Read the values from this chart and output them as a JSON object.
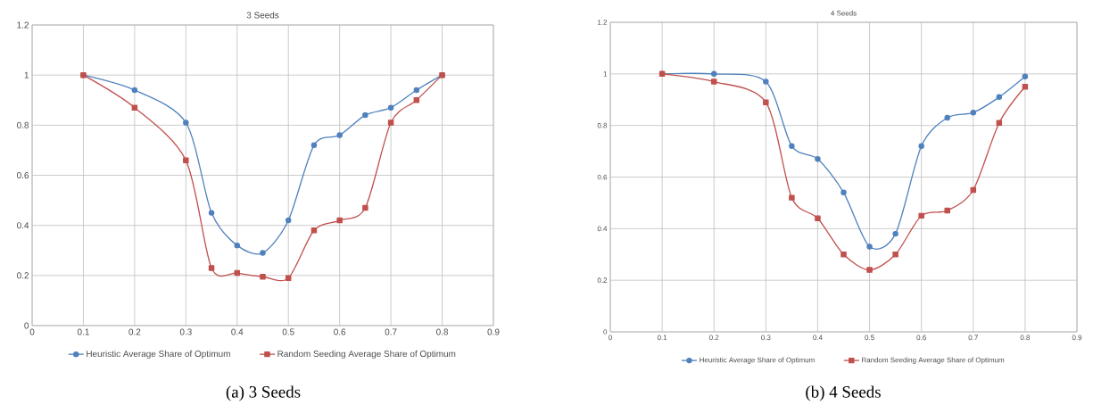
{
  "chart_data": [
    {
      "type": "line",
      "title": "3 Seeds",
      "x": [
        0.1,
        0.2,
        0.3,
        0.35,
        0.4,
        0.45,
        0.5,
        0.55,
        0.6,
        0.65,
        0.7,
        0.75,
        0.8
      ],
      "series": [
        {
          "name": "Heuristic Average Share of Optimum",
          "color": "#4f81bd",
          "marker": "circle",
          "values": [
            1,
            0.94,
            0.81,
            0.45,
            0.32,
            0.29,
            0.42,
            0.72,
            0.76,
            0.84,
            0.87,
            0.94,
            1
          ]
        },
        {
          "name": "Random Seeding Average Share of Optimum",
          "color": "#c0504d",
          "marker": "square",
          "values": [
            1,
            0.87,
            0.66,
            0.23,
            0.21,
            0.195,
            0.19,
            0.38,
            0.42,
            0.47,
            0.81,
            0.9,
            1
          ]
        }
      ],
      "xlim": [
        0,
        0.9
      ],
      "xticks": [
        0,
        0.1,
        0.2,
        0.3,
        0.4,
        0.5,
        0.6,
        0.7,
        0.8,
        0.9
      ],
      "ylim": [
        0,
        1.2
      ],
      "yticks": [
        0,
        0.2,
        0.4,
        0.6,
        0.8,
        1,
        1.2
      ],
      "grid": true,
      "legend": "bottom",
      "annotations": [
        "(a) 3 Seeds"
      ]
    },
    {
      "type": "line",
      "title": "4 Seeds",
      "x": [
        0.1,
        0.2,
        0.3,
        0.35,
        0.4,
        0.45,
        0.5,
        0.55,
        0.6,
        0.65,
        0.7,
        0.75,
        0.8
      ],
      "series": [
        {
          "name": "Heuristic Average Share of Optimum",
          "color": "#4f81bd",
          "marker": "circle",
          "values": [
            1,
            1,
            0.97,
            0.72,
            0.67,
            0.54,
            0.33,
            0.38,
            0.72,
            0.83,
            0.85,
            0.91,
            0.99
          ]
        },
        {
          "name": "Random Seeding Average Share of Optimum",
          "color": "#c0504d",
          "marker": "square",
          "values": [
            1,
            0.97,
            0.89,
            0.52,
            0.44,
            0.3,
            0.24,
            0.3,
            0.45,
            0.47,
            0.55,
            0.81,
            0.95
          ]
        }
      ],
      "xlim": [
        0,
        0.9
      ],
      "xticks": [
        0,
        0.1,
        0.2,
        0.3,
        0.4,
        0.5,
        0.6,
        0.7,
        0.8,
        0.9
      ],
      "ylim": [
        0,
        1.2
      ],
      "yticks": [
        0,
        0.2,
        0.4,
        0.6,
        0.8,
        1,
        1.2
      ],
      "grid": true,
      "legend": "bottom",
      "annotations": [
        "(b) 4 Seeds"
      ]
    }
  ]
}
